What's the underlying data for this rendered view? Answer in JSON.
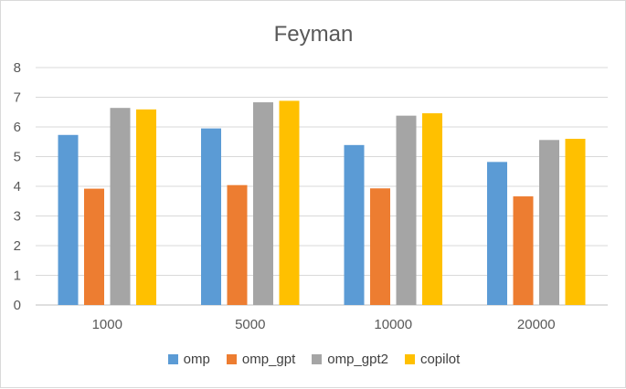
{
  "chart_data": {
    "type": "bar",
    "title": "Feyman",
    "categories": [
      "1000",
      "5000",
      "10000",
      "20000"
    ],
    "series": [
      {
        "name": "omp",
        "color": "#5b9bd5",
        "values": [
          5.73,
          5.95,
          5.39,
          4.82
        ]
      },
      {
        "name": "omp_gpt",
        "color": "#ed7d31",
        "values": [
          3.92,
          4.04,
          3.93,
          3.66
        ]
      },
      {
        "name": "omp_gpt2",
        "color": "#a5a5a5",
        "values": [
          6.64,
          6.83,
          6.38,
          5.56
        ]
      },
      {
        "name": "copilot",
        "color": "#ffc000",
        "values": [
          6.59,
          6.88,
          6.46,
          5.6
        ]
      }
    ],
    "ylim": [
      0,
      8
    ],
    "yticks": [
      "0",
      "1",
      "2",
      "3",
      "4",
      "5",
      "6",
      "7",
      "8"
    ],
    "grid": true,
    "legend_position": "bottom"
  }
}
